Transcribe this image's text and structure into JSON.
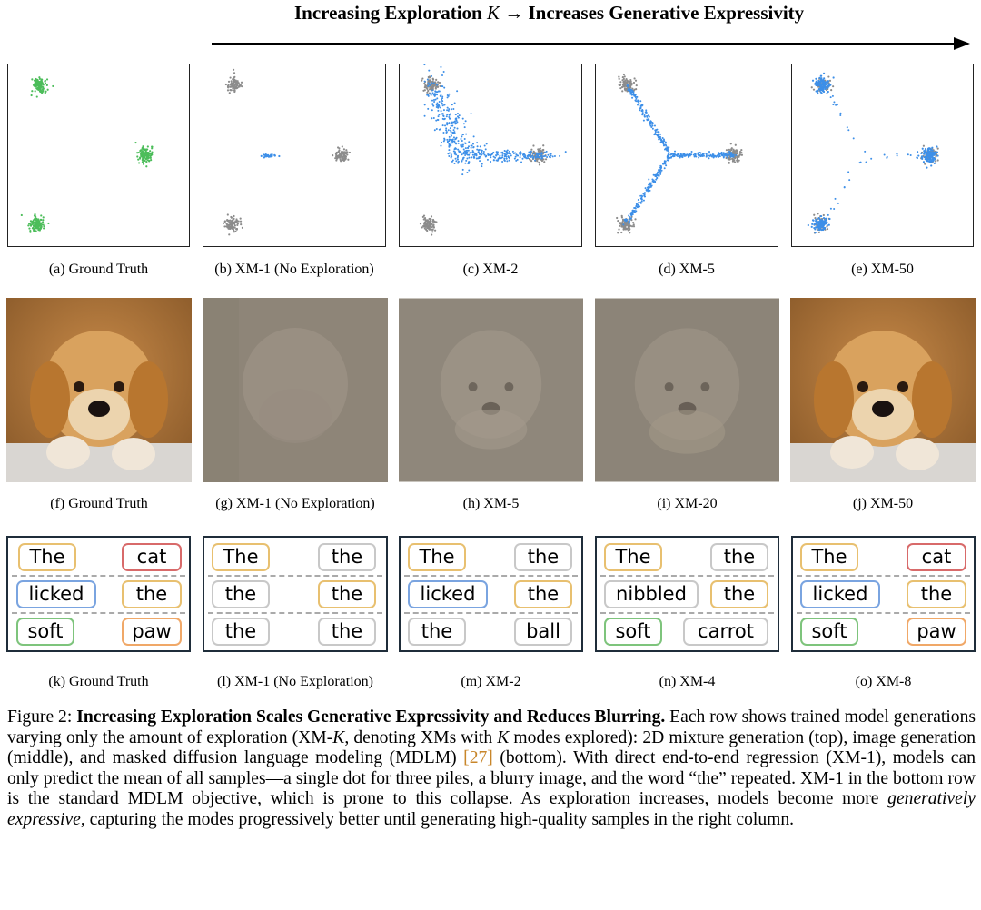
{
  "header": {
    "title_prefix": "Increasing Exploration ",
    "title_var": "K",
    "title_arrow": " → ",
    "title_suffix": "Increases Generative Expressivity"
  },
  "row1": {
    "captions": [
      "(a) Ground Truth",
      "(b) XM-1 (No Exploration)",
      "(c) XM-2",
      "(d) XM-5",
      "(e) XM-50"
    ],
    "colors": {
      "ground_truth": "#4cbd5a",
      "target": "#8c8c8c",
      "generated": "#3d8fe8"
    }
  },
  "row2": {
    "captions": [
      "(f) Ground Truth",
      "(g) XM-1 (No Exploration)",
      "(h) XM-5",
      "(i) XM-20",
      "(j) XM-50"
    ]
  },
  "row3": {
    "captions": [
      "(k) Ground Truth",
      "(l) XM-1 (No Exploration)",
      "(m) XM-2",
      "(n) XM-4",
      "(o) XM-8"
    ],
    "panels": [
      [
        [
          "The",
          "cat"
        ],
        [
          "licked",
          "the"
        ],
        [
          "soft",
          "paw"
        ]
      ],
      [
        [
          "The",
          "the"
        ],
        [
          "the",
          "the"
        ],
        [
          "the",
          "the"
        ]
      ],
      [
        [
          "The",
          "the"
        ],
        [
          "licked",
          "the"
        ],
        [
          "the",
          "ball"
        ]
      ],
      [
        [
          "The",
          "the"
        ],
        [
          "nibbled",
          "the"
        ],
        [
          "soft",
          "carrot"
        ]
      ],
      [
        [
          "The",
          "cat"
        ],
        [
          "licked",
          "the"
        ],
        [
          "soft",
          "paw"
        ]
      ]
    ],
    "token_colors": {
      "yellow": "#e8c070",
      "red": "#d86a6a",
      "blue": "#7aa4e0",
      "green": "#7ec47c",
      "orange": "#f0a868",
      "grey": "#c8c8c8"
    }
  },
  "figure_caption": {
    "label": "Figure 2: ",
    "bold": "Increasing Exploration Scales Generative Expressivity and Reduces Blurring.",
    "part1": " Each row shows trained model generations varying only the amount of exploration (XM-",
    "k": "K",
    "part2": ", denoting XMs with ",
    "k2": "K",
    "part3": " modes explored): 2D mixture generation (top), image generation (middle), and masked diffusion language modeling (MDLM) ",
    "ref": "[27]",
    "part4": " (bottom). With direct end-to-end regression (XM-1), models can only predict the mean of all samples—a single dot for three piles, a blurry image, and the word “the” repeated. XM-1 in the bottom row is the standard MDLM objective, which is prone to this collapse. As exploration increases, models become more ",
    "italic": "generatively expressive",
    "part5": ", capturing the modes progressively better until generating high-quality samples in the right column."
  }
}
